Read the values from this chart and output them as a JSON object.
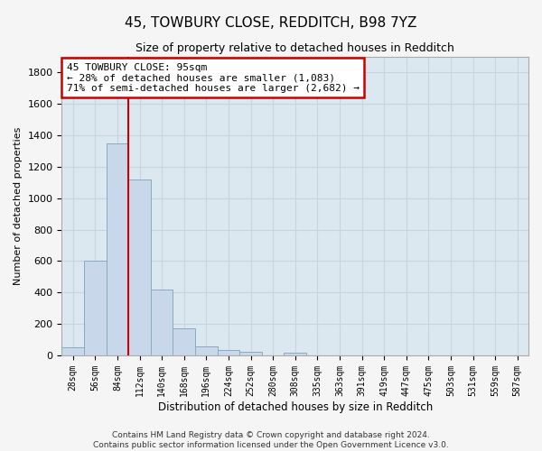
{
  "title_line1": "45, TOWBURY CLOSE, REDDITCH, B98 7YZ",
  "title_line2": "Size of property relative to detached houses in Redditch",
  "xlabel": "Distribution of detached houses by size in Redditch",
  "ylabel": "Number of detached properties",
  "footnote": "Contains HM Land Registry data © Crown copyright and database right 2024.\nContains public sector information licensed under the Open Government Licence v3.0.",
  "categories": [
    "28sqm",
    "56sqm",
    "84sqm",
    "112sqm",
    "140sqm",
    "168sqm",
    "196sqm",
    "224sqm",
    "252sqm",
    "280sqm",
    "308sqm",
    "335sqm",
    "363sqm",
    "391sqm",
    "419sqm",
    "447sqm",
    "475sqm",
    "503sqm",
    "531sqm",
    "559sqm",
    "587sqm"
  ],
  "bar_values": [
    50,
    600,
    1350,
    1120,
    420,
    170,
    60,
    35,
    20,
    0,
    15,
    0,
    0,
    0,
    0,
    0,
    0,
    0,
    0,
    0,
    0
  ],
  "bar_color": "#c8d8ea",
  "bar_edge_color": "#8aaabf",
  "bar_width": 1.0,
  "vline_color": "#cc0000",
  "vline_x_index": 2.5,
  "annotation_line1": "45 TOWBURY CLOSE: 95sqm",
  "annotation_line2": "← 28% of detached houses are smaller (1,083)",
  "annotation_line3": "71% of semi-detached houses are larger (2,682) →",
  "ylim": [
    0,
    1900
  ],
  "yticks": [
    0,
    200,
    400,
    600,
    800,
    1000,
    1200,
    1400,
    1600,
    1800
  ],
  "grid_color": "#c8d4e0",
  "axes_bg_color": "#dce8f0",
  "fig_bg_color": "#f5f5f5"
}
